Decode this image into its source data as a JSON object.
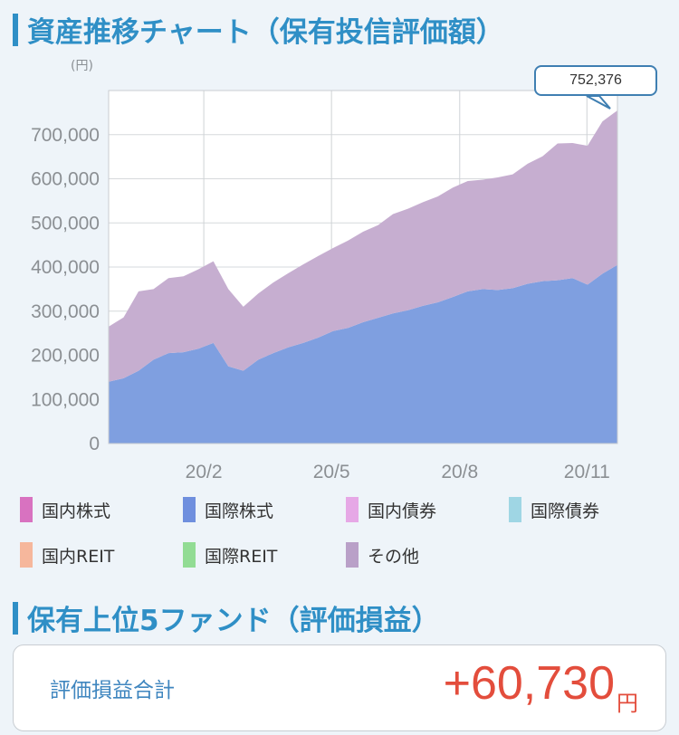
{
  "header": {
    "title": "資産推移チャート（保有投信評価額）"
  },
  "chart": {
    "unit_label": "(円)",
    "latest_value_label": "752,376"
  },
  "chart_data": {
    "type": "area",
    "stacked": true,
    "x": [
      "20/1",
      "20/1",
      "20/1",
      "20/2",
      "20/2",
      "20/2",
      "20/3",
      "20/3",
      "20/3",
      "20/3",
      "20/4",
      "20/4",
      "20/4",
      "20/5",
      "20/5",
      "20/5",
      "20/6",
      "20/6",
      "20/6",
      "20/7",
      "20/7",
      "20/7",
      "20/8",
      "20/8",
      "20/8",
      "20/9",
      "20/9",
      "20/9",
      "20/10",
      "20/10",
      "20/10",
      "20/11",
      "20/11",
      "20/11",
      "20/12"
    ],
    "x_tick_labels": [
      "20/2",
      "20/5",
      "20/8",
      "20/11"
    ],
    "y_tick_labels": [
      "0",
      "100,000",
      "200,000",
      "300,000",
      "400,000",
      "500,000",
      "600,000",
      "700,000"
    ],
    "ylim": [
      0,
      800000
    ],
    "grid": true,
    "series": [
      {
        "name": "国際株式",
        "color": "#7f9fe0",
        "values": [
          140000,
          148000,
          165000,
          190000,
          205000,
          207000,
          215000,
          228000,
          175000,
          165000,
          190000,
          205000,
          218000,
          228000,
          240000,
          255000,
          262000,
          275000,
          285000,
          295000,
          302000,
          312000,
          320000,
          332000,
          345000,
          350000,
          348000,
          352000,
          362000,
          368000,
          370000,
          375000,
          360000,
          385000,
          405000
        ]
      },
      {
        "name": "その他",
        "color": "#c6aed0",
        "values": [
          125000,
          138000,
          180000,
          160000,
          170000,
          172000,
          180000,
          185000,
          175000,
          145000,
          150000,
          160000,
          168000,
          178000,
          185000,
          188000,
          198000,
          205000,
          210000,
          225000,
          230000,
          235000,
          240000,
          248000,
          250000,
          248000,
          255000,
          258000,
          272000,
          283000,
          310000,
          306000,
          315000,
          345000,
          350000
        ]
      }
    ]
  },
  "legend": [
    {
      "label": "国内株式",
      "color": "#d872c0"
    },
    {
      "label": "国際株式",
      "color": "#6f8fde"
    },
    {
      "label": "国内債券",
      "color": "#e6a8e6"
    },
    {
      "label": "国際債券",
      "color": "#9fd6e4"
    },
    {
      "label": "国内REIT",
      "color": "#f6b79c"
    },
    {
      "label": "国際REIT",
      "color": "#92dc94"
    },
    {
      "label": "その他",
      "color": "#b9a0c8"
    }
  ],
  "section2": {
    "title": "保有上位5ファンド（評価損益）"
  },
  "summary": {
    "label": "評価損益合計",
    "value": "+60,730",
    "unit": "円"
  }
}
